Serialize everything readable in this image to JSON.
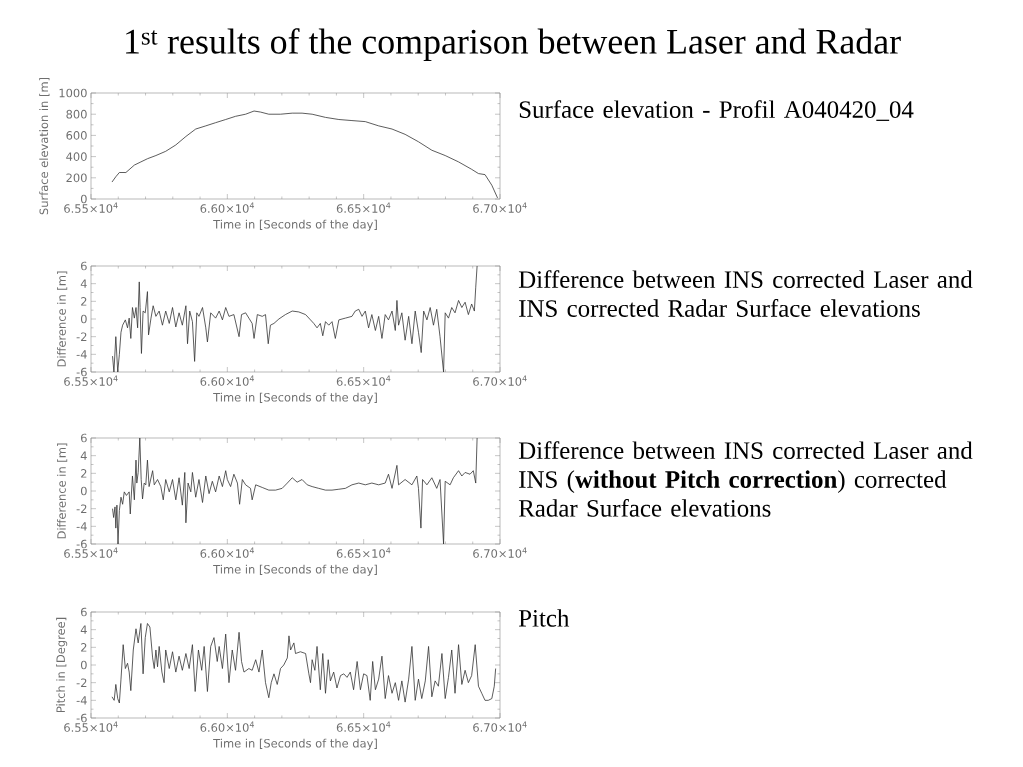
{
  "chart_data": [
    {
      "type": "line",
      "title": "1$^{st}$ results of the comparison between Laser and Radar",
      "subtitle": "Surface elevation - Profil A040420_04",
      "xlabel": "Time in [Seconds of the day]",
      "ylabel": "Surface elevation in [m]",
      "xlim": [
        65500,
        67000
      ],
      "ylim": [
        0,
        1000
      ],
      "xticks": [
        {
          "value": 65500,
          "label": "6.55×10$^{4}$"
        },
        {
          "value": 66000,
          "label": "6.60×10$^{4}$"
        },
        {
          "value": 66500,
          "label": "6.65×10$^{4}$"
        },
        {
          "value": 67000,
          "label": "6.70×10$^{4}$"
        }
      ],
      "yticks": [
        0,
        200,
        400,
        600,
        800,
        1000
      ],
      "x": [
        65577,
        65591,
        65604,
        65628,
        65659,
        65683,
        65707,
        65738,
        65774,
        65811,
        65848,
        65884,
        65921,
        65957,
        65994,
        66030,
        66067,
        66098,
        66122,
        66152,
        66195,
        66238,
        66274,
        66311,
        66360,
        66409,
        66457,
        66506,
        66555,
        66604,
        66652,
        66701,
        66750,
        66799,
        66848,
        66896,
        66921,
        66945,
        66970,
        66991
      ],
      "series": [
        {
          "color": "#333333",
          "values": [
            160,
            210,
            250,
            250,
            320,
            350,
            380,
            410,
            450,
            510,
            590,
            660,
            690,
            720,
            750,
            780,
            800,
            830,
            820,
            800,
            800,
            810,
            810,
            800,
            770,
            750,
            740,
            730,
            690,
            660,
            610,
            540,
            460,
            410,
            350,
            280,
            240,
            230,
            130,
            10
          ]
        }
      ]
    },
    {
      "type": "line",
      "title": "Difference between INS corrected Laser and INS corrected Radar Surface elevations",
      "xlabel": "Time in [Seconds of the day]",
      "ylabel": "Difference in [m]",
      "xlim": [
        65500,
        67000
      ],
      "ylim": [
        -6,
        6
      ],
      "xticks": [
        {
          "value": 65500,
          "label": "6.55×10$^{4}$"
        },
        {
          "value": 66000,
          "label": "6.60×10$^{4}$"
        },
        {
          "value": 66500,
          "label": "6.65×10$^{4}$"
        },
        {
          "value": 67000,
          "label": "6.70×10$^{4}$"
        }
      ],
      "yticks": [
        -6,
        -4,
        -2,
        0,
        2,
        4,
        6
      ],
      "x": [
        65579,
        65584,
        65591,
        65598,
        65604,
        65610,
        65616,
        65626,
        65634,
        65640,
        65646,
        65652,
        65659,
        65665,
        65671,
        65677,
        65680,
        65685,
        65691,
        65699,
        65707,
        65711,
        65720,
        65728,
        65738,
        65750,
        65762,
        65774,
        65787,
        65799,
        65811,
        65823,
        65835,
        65848,
        65854,
        65862,
        65872,
        65880,
        65888,
        65896,
        65909,
        65921,
        65927,
        65939,
        65957,
        65970,
        65982,
        65994,
        66006,
        66024,
        66043,
        66052,
        66067,
        66079,
        66091,
        66098,
        66110,
        66128,
        66140,
        66150,
        66158,
        66171,
        66189,
        66213,
        66238,
        66262,
        66287,
        66305,
        66317,
        66329,
        66341,
        66350,
        66360,
        66372,
        66384,
        66396,
        66409,
        66433,
        66457,
        66469,
        66482,
        66494,
        66506,
        66518,
        66530,
        66543,
        66555,
        66567,
        66579,
        66591,
        66604,
        66616,
        66622,
        66628,
        66640,
        66652,
        66665,
        66677,
        66689,
        66701,
        66711,
        66720,
        66732,
        66744,
        66756,
        66768,
        66780,
        66793,
        66799,
        66811,
        66823,
        66835,
        66848,
        66860,
        66872,
        66884,
        66896,
        66906,
        66911,
        66916
      ],
      "series": [
        {
          "color": "#333333",
          "values": [
            -4.2,
            -6,
            -2.0,
            -6,
            -4.0,
            -1.5,
            -0.7,
            -0.1,
            -1.0,
            0.1,
            -2.2,
            1.3,
            0.1,
            1.3,
            -1.0,
            4.2,
            1.3,
            -3.9,
            0.9,
            0.7,
            3.1,
            -1.8,
            0.1,
            1.5,
            0.3,
            0.9,
            -0.7,
            0.9,
            -0.5,
            1.3,
            -0.9,
            0.7,
            -0.7,
            1.5,
            -2.8,
            0.9,
            -0.3,
            -4.8,
            0.7,
            0.3,
            1.3,
            -1.0,
            -2.6,
            0.7,
            0.1,
            0.9,
            -0.1,
            1.3,
            0.3,
            0.5,
            -2.0,
            0.5,
            0.7,
            0.1,
            -0.5,
            -2.2,
            0.5,
            0.3,
            0.5,
            -2.8,
            -0.7,
            -0.5,
            0,
            0.5,
            0.9,
            0.8,
            0.5,
            -0.1,
            -0.5,
            -1.0,
            -0.5,
            -1.9,
            -0.3,
            -0.7,
            -0.3,
            -2.2,
            -0.1,
            0.1,
            0.3,
            0.9,
            1.1,
            0.3,
            0.9,
            -1.0,
            0.5,
            -1.3,
            0.3,
            -2.2,
            0.5,
            -0.1,
            0.9,
            -1.3,
            2.1,
            -0.7,
            0.7,
            -2.4,
            0.3,
            -2.8,
            0.9,
            -1.5,
            -3.8,
            0.9,
            -0.1,
            1.3,
            -0.7,
            1.1,
            -2.0,
            -6,
            0.7,
            0.1,
            1.3,
            0.7,
            2.1,
            1.3,
            1.9,
            0.5,
            1.7,
            0.9,
            3.6,
            6
          ]
        }
      ]
    },
    {
      "type": "line",
      "title": "Difference between INS corrected Laser and INS (**without Pitch correction**) corrected Radar Surface elevations",
      "xlabel": "Time in [Seconds of the day]",
      "ylabel": "Difference in [m]",
      "xlim": [
        65500,
        67000
      ],
      "ylim": [
        -6,
        6
      ],
      "xticks": [
        {
          "value": 65500,
          "label": "6.55×10$^{4}$"
        },
        {
          "value": 66000,
          "label": "6.60×10$^{4}$"
        },
        {
          "value": 66500,
          "label": "6.65×10$^{4}$"
        },
        {
          "value": 67000,
          "label": "6.70×10$^{4}$"
        }
      ],
      "yticks": [
        -6,
        -4,
        -2,
        0,
        2,
        4,
        6
      ],
      "x": [
        65579,
        65583,
        65588,
        65591,
        65595,
        65599,
        65604,
        65610,
        65616,
        65622,
        65630,
        65640,
        65644,
        65652,
        65659,
        65665,
        65668,
        65673,
        65679,
        65684,
        65689,
        65695,
        65701,
        65707,
        65713,
        65726,
        65732,
        65744,
        65756,
        65765,
        65774,
        65787,
        65799,
        65811,
        65823,
        65835,
        65844,
        65848,
        65856,
        65866,
        65872,
        65884,
        65896,
        65909,
        65921,
        65933,
        65945,
        65957,
        65970,
        65982,
        65994,
        66000,
        66012,
        66024,
        66037,
        66045,
        66055,
        66067,
        66085,
        66091,
        66104,
        66128,
        66152,
        66177,
        66201,
        66220,
        66238,
        66256,
        66274,
        66293,
        66311,
        66335,
        66360,
        66384,
        66409,
        66433,
        66457,
        66482,
        66506,
        66530,
        66555,
        66579,
        66591,
        66604,
        66622,
        66628,
        66652,
        66677,
        66695,
        66701,
        66710,
        66716,
        66732,
        66750,
        66768,
        66780,
        66793,
        66799,
        66817,
        66829,
        66848,
        66860,
        66872,
        66890,
        66902,
        66911,
        66916
      ],
      "series": [
        {
          "color": "#333333",
          "values": [
            -2.0,
            -3.0,
            -1.8,
            -4.2,
            -1.6,
            -6,
            -2.2,
            -0.7,
            -1.5,
            -0.1,
            -0.5,
            -0.1,
            -2.6,
            1.7,
            -1.0,
            3.5,
            0.9,
            2.1,
            6,
            1.3,
            -0.9,
            0.9,
            0.7,
            3.5,
            0.5,
            2.3,
            0.7,
            1.3,
            0.5,
            -1.0,
            1.3,
            -0.1,
            1.3,
            -1.0,
            1.5,
            -1.6,
            2.1,
            -3.6,
            0.9,
            -0.1,
            2.1,
            -0.7,
            1.3,
            -1.3,
            1.7,
            -0.3,
            1.1,
            -0.1,
            1.7,
            0.5,
            2.3,
            1.3,
            0.5,
            1.9,
            0.9,
            -1.5,
            1.3,
            0.7,
            0.3,
            -1.0,
            0.7,
            0.4,
            0.1,
            0.1,
            0.3,
            0.9,
            1.5,
            1.0,
            1.3,
            0.7,
            0.5,
            0.3,
            0.1,
            0.1,
            0.2,
            0.3,
            0.7,
            0.9,
            0.7,
            0.9,
            0.7,
            0.9,
            1.9,
            0.3,
            2.9,
            0.7,
            1.3,
            0.7,
            1.7,
            0.3,
            -4.2,
            1.3,
            0.7,
            1.5,
            0.3,
            1.3,
            -6,
            1.1,
            0.7,
            1.5,
            2.3,
            1.7,
            2.1,
            1.9,
            2.3,
            0.9,
            6
          ]
        }
      ]
    },
    {
      "type": "line",
      "title": "Pitch",
      "xlabel": "Time in [Seconds of the day]",
      "ylabel": "Pitch in [Degree]",
      "xlim": [
        65500,
        67000
      ],
      "ylim": [
        -6,
        6
      ],
      "xticks": [
        {
          "value": 65500,
          "label": "6.55×10$^{4}$"
        },
        {
          "value": 66000,
          "label": "6.60×10$^{4}$"
        },
        {
          "value": 66500,
          "label": "6.65×10$^{4}$"
        },
        {
          "value": 67000,
          "label": "6.70×10$^{4}$"
        }
      ],
      "yticks": [
        -6,
        -4,
        -2,
        0,
        2,
        4,
        6
      ],
      "x": [
        65577,
        65585,
        65591,
        65598,
        65604,
        65610,
        65618,
        65626,
        65634,
        65640,
        65646,
        65655,
        65665,
        65673,
        65683,
        65691,
        65699,
        65707,
        65716,
        65726,
        65732,
        65738,
        65744,
        65750,
        65760,
        65768,
        65774,
        65787,
        65799,
        65811,
        65823,
        65835,
        65848,
        65860,
        65872,
        65882,
        65894,
        65906,
        65915,
        65927,
        65939,
        65951,
        65963,
        65970,
        65982,
        65994,
        66006,
        66018,
        66030,
        66043,
        66052,
        66061,
        66079,
        66091,
        66104,
        66116,
        66128,
        66140,
        66152,
        66161,
        66171,
        66183,
        66195,
        66207,
        66220,
        66226,
        66232,
        66244,
        66250,
        66268,
        66287,
        66299,
        66305,
        66311,
        66321,
        66329,
        66341,
        66350,
        66360,
        66370,
        66378,
        66390,
        66402,
        66415,
        66427,
        66439,
        66451,
        66463,
        66476,
        66488,
        66500,
        66512,
        66524,
        66533,
        66543,
        66555,
        66567,
        66579,
        66591,
        66604,
        66616,
        66628,
        66640,
        66652,
        66665,
        66677,
        66689,
        66701,
        66713,
        66726,
        66738,
        66750,
        66762,
        66774,
        66787,
        66799,
        66811,
        66823,
        66835,
        66848,
        66860,
        66872,
        66884,
        66896,
        66909,
        66921,
        66933,
        66945,
        66957,
        66970,
        66979,
        66984
      ],
      "series": [
        {
          "color": "#333333",
          "values": [
            -3.6,
            -4.0,
            -2.2,
            -3.8,
            -4.3,
            -1.6,
            2.3,
            -0.4,
            0.2,
            -0.8,
            -2.9,
            1.7,
            4.1,
            2.5,
            4.7,
            -1.0,
            3.1,
            4.7,
            4.3,
            0.8,
            -0.4,
            1.7,
            -0.2,
            2.1,
            -0.8,
            -2.0,
            1.7,
            -0.4,
            1.5,
            -0.8,
            1.0,
            -0.6,
            1.3,
            -0.4,
            2.3,
            -3.0,
            1.7,
            -0.6,
            2.1,
            -3.0,
            2.1,
            3.1,
            0.4,
            2.1,
            -0.4,
            3.5,
            -2.0,
            1.7,
            -0.6,
            3.7,
            0.4,
            -0.8,
            -0.4,
            -0.6,
            0.6,
            -0.8,
            1.7,
            -2.0,
            -3.7,
            -2.0,
            -1.0,
            -2.2,
            -0.4,
            0,
            0.8,
            3.3,
            1.7,
            2.5,
            1.3,
            1.5,
            1.3,
            -1.0,
            -2.0,
            0.6,
            -0.6,
            2.1,
            -2.8,
            1.3,
            -3.2,
            0.6,
            -1.8,
            -0.8,
            -2.6,
            -1.2,
            -1.0,
            -1.4,
            -0.8,
            -2.8,
            0.4,
            -2.8,
            -1.0,
            -1.2,
            -4.0,
            0.4,
            -2.8,
            -1.6,
            1.0,
            -3.8,
            -1.2,
            -3.2,
            -2.0,
            -4.0,
            -1.8,
            -4.2,
            -1.6,
            2.1,
            -4.0,
            -1.6,
            -3.8,
            -1.8,
            2.1,
            -3.6,
            -1.8,
            -2.4,
            1.3,
            -3.8,
            -1.4,
            1.7,
            -3.2,
            2.3,
            -2.2,
            -0.6,
            -2.0,
            -1.2,
            2.3,
            -2.4,
            -3.2,
            -4.0,
            -4.0,
            -3.8,
            -2.4,
            -0.4
          ]
        }
      ]
    }
  ]
}
